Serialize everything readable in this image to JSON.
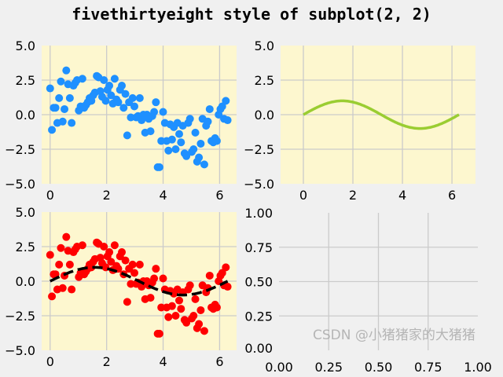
{
  "title": "fivethirtyeight style of subplot(2, 2)",
  "watermark": "CSDN @小猪猪家的大猪猪",
  "colors": {
    "figure_bg": "#f0f0f0",
    "axes_bg": "#fdf7cf",
    "grid": "#cbcbcb",
    "scatter_blue": "#1e90ff",
    "scatter_red": "#ff0000",
    "sine_green": "#9acd32",
    "sine_dashed": "#000000"
  },
  "chart_data": [
    {
      "type": "scatter",
      "position": "top-left",
      "grid": true,
      "facecolor": "lemonchiffon",
      "xlim": [
        -0.3,
        6.6
      ],
      "ylim": [
        -5,
        5
      ],
      "xticks": [
        "0",
        "2",
        "4",
        "6"
      ],
      "yticks": [
        "−5.0",
        "−2.5",
        "0.0",
        "2.5",
        "5.0"
      ],
      "xtick_values": [
        0,
        2,
        4,
        6
      ],
      "ytick_values": [
        -5,
        -2.5,
        0,
        2.5,
        5
      ],
      "series": [
        {
          "marker": "o",
          "color": "#1e90ff",
          "y": [
            1.9,
            -1.1,
            0.5,
            0.5,
            -0.6,
            1.2,
            2.4,
            -0.5,
            0.4,
            3.2,
            2.2,
            1.2,
            -0.6,
            2.1,
            2.3,
            2.5,
            0.3,
            0.6,
            2.6,
            0.5,
            0.7,
            0.9,
            1.2,
            1.0,
            1.4,
            1.6,
            2.8,
            2.7,
            1.7,
            1.3,
            2.5,
            1.0,
            1.8,
            2.1,
            1.4,
            0.8,
            2.6,
            1.1,
            0.9,
            1.8,
            2.1,
            0.5,
            1.5,
            -1.5,
            0.9,
            -0.2,
            1.2,
            0.6,
            -0.2,
            -0.1,
            1.2,
            -0.4,
            0.0,
            -1.3,
            0.0,
            -0.3,
            -1.2,
            -0.1,
            0.2,
            0.9,
            -3.8,
            -3.8,
            -1.9,
            0.2,
            -0.6,
            -1.9,
            -2.6,
            -0.7,
            -1.8,
            -0.9,
            -2.5,
            -0.6,
            -1.4,
            -2.0,
            -0.8,
            -2.8,
            -3.0,
            -0.6,
            -0.3,
            -2.7,
            -2.5,
            -1.3,
            -3.4,
            -3.1,
            -2.1,
            -0.3,
            -3.6,
            -0.8,
            -0.5,
            0.4,
            -1.9,
            -2.0,
            -1.7,
            -1.9,
            0.0,
            0.4,
            0.6,
            -0.3,
            1.0,
            -0.4
          ],
          "x_range": [
            0,
            6.283
          ]
        }
      ]
    },
    {
      "type": "line",
      "position": "top-right",
      "grid": true,
      "facecolor": "lemonchiffon",
      "xlim": [
        -0.92,
        6.95
      ],
      "ylim": [
        -5,
        5
      ],
      "xticks": [
        "0",
        "2",
        "4",
        "6"
      ],
      "yticks": [
        "−5.0",
        "−2.5",
        "0.0",
        "2.5",
        "5.0"
      ],
      "xtick_values": [
        0,
        2,
        4,
        6
      ],
      "ytick_values": [
        -5,
        -2.5,
        0,
        2.5,
        5
      ],
      "series": [
        {
          "function": "sin(x)",
          "x_range": [
            0,
            6.283
          ],
          "color": "#9acd32",
          "linestyle": "solid"
        }
      ]
    },
    {
      "type": "scatter",
      "position": "bottom-left",
      "grid": true,
      "facecolor": "lemonchiffon",
      "xlim": [
        -0.3,
        6.6
      ],
      "ylim": [
        -5,
        5
      ],
      "xticks": [
        "0",
        "2",
        "4",
        "6"
      ],
      "yticks": [
        "−5.0",
        "−2.5",
        "0.0",
        "2.5",
        "5.0"
      ],
      "xtick_values": [
        0,
        2,
        4,
        6
      ],
      "ytick_values": [
        -5,
        -2.5,
        0,
        2.5,
        5
      ],
      "series": [
        {
          "marker": "o",
          "color": "#ff0000",
          "same_as": "top-left"
        },
        {
          "function": "sin(x)",
          "x_range": [
            0,
            6.283
          ],
          "color": "#000000",
          "linestyle": "dashed"
        }
      ]
    },
    {
      "type": "line",
      "position": "bottom-right",
      "grid": true,
      "facecolor": "none",
      "xlim": [
        0,
        1
      ],
      "ylim": [
        0,
        1
      ],
      "xticks": [
        "0.00",
        "0.25",
        "0.50",
        "0.75",
        "1.00"
      ],
      "yticks": [
        "0.00",
        "0.25",
        "0.50",
        "0.75",
        "1.00"
      ],
      "xtick_values": [
        0,
        0.25,
        0.5,
        0.75,
        1
      ],
      "ytick_values": [
        0,
        0.25,
        0.5,
        0.75,
        1
      ],
      "series": []
    }
  ]
}
